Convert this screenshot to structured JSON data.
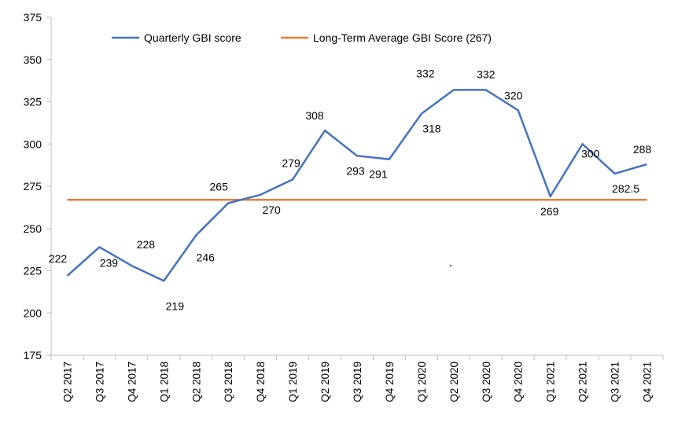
{
  "chart_data": {
    "type": "line",
    "categories": [
      "Q2 2017",
      "Q3 2017",
      "Q4 2017",
      "Q1 2018",
      "Q2 2018",
      "Q3 2018",
      "Q4 2018",
      "Q1 2019",
      "Q2 2019",
      "Q3 2019",
      "Q4 2019",
      "Q1 2020",
      "Q2 2020",
      "Q3 2020",
      "Q4 2020",
      "Q1 2021",
      "Q2 2021",
      "Q3 2021",
      "Q4 2021"
    ],
    "series": [
      {
        "name": "Quarterly GBI score",
        "color": "#4472C4",
        "values": [
          222,
          239,
          228,
          219,
          246,
          265,
          270,
          279,
          308,
          293,
          291,
          318,
          332,
          332,
          320,
          269,
          300,
          282.5,
          288
        ],
        "labels": [
          "222",
          "239",
          "228",
          "219",
          "246",
          "265",
          "270",
          "279",
          "308",
          "293",
          "291",
          "318",
          "332",
          "332",
          "320",
          "269",
          "300",
          "282.5",
          "288"
        ]
      },
      {
        "name": "Long-Term Average GBI Score (267)",
        "color": "#ED7D31",
        "values": [
          267,
          267,
          267,
          267,
          267,
          267,
          267,
          267,
          267,
          267,
          267,
          267,
          267,
          267,
          267,
          267,
          267,
          267,
          267
        ]
      }
    ],
    "yticks": [
      "375",
      "350",
      "325",
      "300",
      "275",
      "250",
      "225",
      "200",
      "175"
    ],
    "ylim": [
      175,
      375
    ],
    "ytick_step": 25,
    "grid": false,
    "legend_position": "top"
  }
}
